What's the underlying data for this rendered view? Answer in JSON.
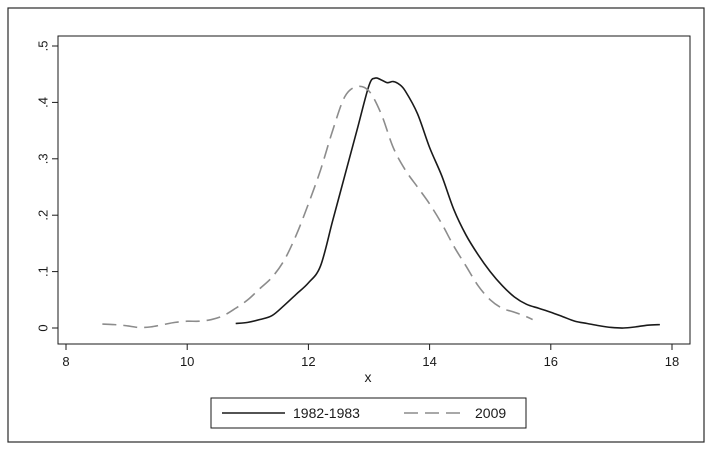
{
  "chart_data": {
    "type": "line",
    "xlabel": "x",
    "ylabel": "",
    "xlim": [
      8,
      18
    ],
    "ylim": [
      0,
      0.5
    ],
    "xticks": [
      8,
      10,
      12,
      14,
      16,
      18
    ],
    "xtick_labels": [
      "8",
      "10",
      "12",
      "14",
      "16",
      "18"
    ],
    "yticks": [
      0,
      0.1,
      0.2,
      0.3,
      0.4,
      0.5
    ],
    "ytick_labels": [
      "0",
      ".1",
      ".2",
      ".3",
      ".4",
      ".5"
    ],
    "grid": false,
    "legend_position": "bottom",
    "series": [
      {
        "name": "1982-1983",
        "style": "solid",
        "color": "#1a1a1a",
        "x": [
          10.8,
          11.0,
          11.2,
          11.4,
          11.6,
          11.8,
          12.0,
          12.2,
          12.4,
          12.6,
          12.8,
          13.0,
          13.1,
          13.2,
          13.3,
          13.4,
          13.5,
          13.6,
          13.8,
          14.0,
          14.2,
          14.4,
          14.6,
          14.8,
          15.0,
          15.2,
          15.4,
          15.6,
          15.8,
          16.0,
          16.2,
          16.4,
          16.6,
          16.8,
          17.0,
          17.2,
          17.4,
          17.6,
          17.8
        ],
        "y": [
          0.008,
          0.01,
          0.015,
          0.022,
          0.04,
          0.06,
          0.08,
          0.11,
          0.19,
          0.27,
          0.35,
          0.43,
          0.443,
          0.44,
          0.435,
          0.437,
          0.432,
          0.42,
          0.38,
          0.32,
          0.27,
          0.21,
          0.165,
          0.13,
          0.1,
          0.075,
          0.055,
          0.042,
          0.035,
          0.028,
          0.02,
          0.012,
          0.008,
          0.004,
          0.001,
          0.0,
          0.002,
          0.005,
          0.006
        ]
      },
      {
        "name": "2009",
        "style": "dashed",
        "color": "#8c8c8c",
        "x": [
          8.6,
          8.8,
          9.0,
          9.2,
          9.4,
          9.6,
          9.8,
          10.0,
          10.2,
          10.4,
          10.6,
          10.8,
          11.0,
          11.2,
          11.4,
          11.6,
          11.8,
          12.0,
          12.2,
          12.4,
          12.6,
          12.8,
          13.0,
          13.2,
          13.4,
          13.6,
          13.8,
          14.0,
          14.2,
          14.4,
          14.6,
          14.8,
          15.0,
          15.2,
          15.4,
          15.6,
          15.7
        ],
        "y": [
          0.007,
          0.006,
          0.004,
          0.001,
          0.002,
          0.006,
          0.01,
          0.012,
          0.012,
          0.015,
          0.022,
          0.035,
          0.05,
          0.07,
          0.09,
          0.12,
          0.165,
          0.22,
          0.28,
          0.35,
          0.41,
          0.428,
          0.42,
          0.38,
          0.32,
          0.28,
          0.25,
          0.22,
          0.185,
          0.145,
          0.11,
          0.075,
          0.05,
          0.035,
          0.028,
          0.02,
          0.015
        ]
      }
    ]
  }
}
